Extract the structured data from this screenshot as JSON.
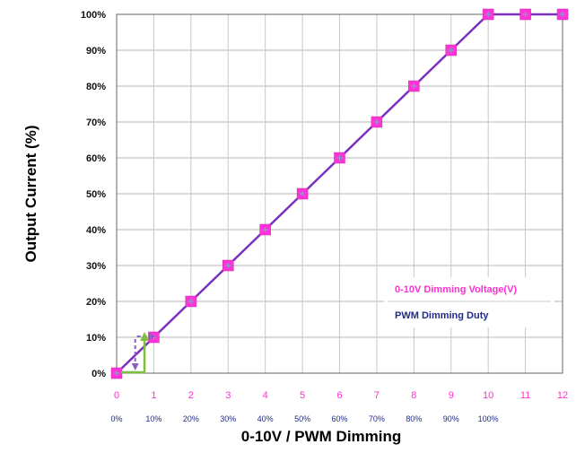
{
  "chart_data": {
    "type": "line",
    "title": "",
    "xlabel": "0-10V / PWM Dimming",
    "ylabel": "Output Current (%)",
    "x": [
      0,
      1,
      2,
      3,
      4,
      5,
      6,
      7,
      8,
      9,
      10,
      11,
      12
    ],
    "series": [
      {
        "values": [
          0,
          10,
          20,
          30,
          40,
          50,
          60,
          70,
          80,
          90,
          100,
          100,
          100
        ],
        "color": "#7b2fbf",
        "marker_color": "#ff33d6"
      }
    ],
    "xlim": [
      0,
      12
    ],
    "ylim": [
      0,
      100
    ],
    "yticks": [
      "0%",
      "10%",
      "20%",
      "30%",
      "40%",
      "50%",
      "60%",
      "70%",
      "80%",
      "90%",
      "100%"
    ],
    "xticks_voltage": [
      "0",
      "1",
      "2",
      "3",
      "4",
      "5",
      "6",
      "7",
      "8",
      "9",
      "10",
      "11",
      "12"
    ],
    "xticks_pwm": [
      "0%",
      "10%",
      "20%",
      "30%",
      "40%",
      "50%",
      "60%",
      "70%",
      "80%",
      "90%",
      "100%"
    ],
    "grid": true,
    "legend": {
      "placement": "bottom-right",
      "entries": [
        {
          "label": "0-10V Dimming Voltage(V)",
          "color": "#ff2fd2"
        },
        {
          "label": "PWM Dimming Duty",
          "color": "#1f2b8a"
        }
      ]
    },
    "annotations": {
      "arrow_colors": [
        "#8b5fbf",
        "#7fbf3f"
      ]
    }
  }
}
